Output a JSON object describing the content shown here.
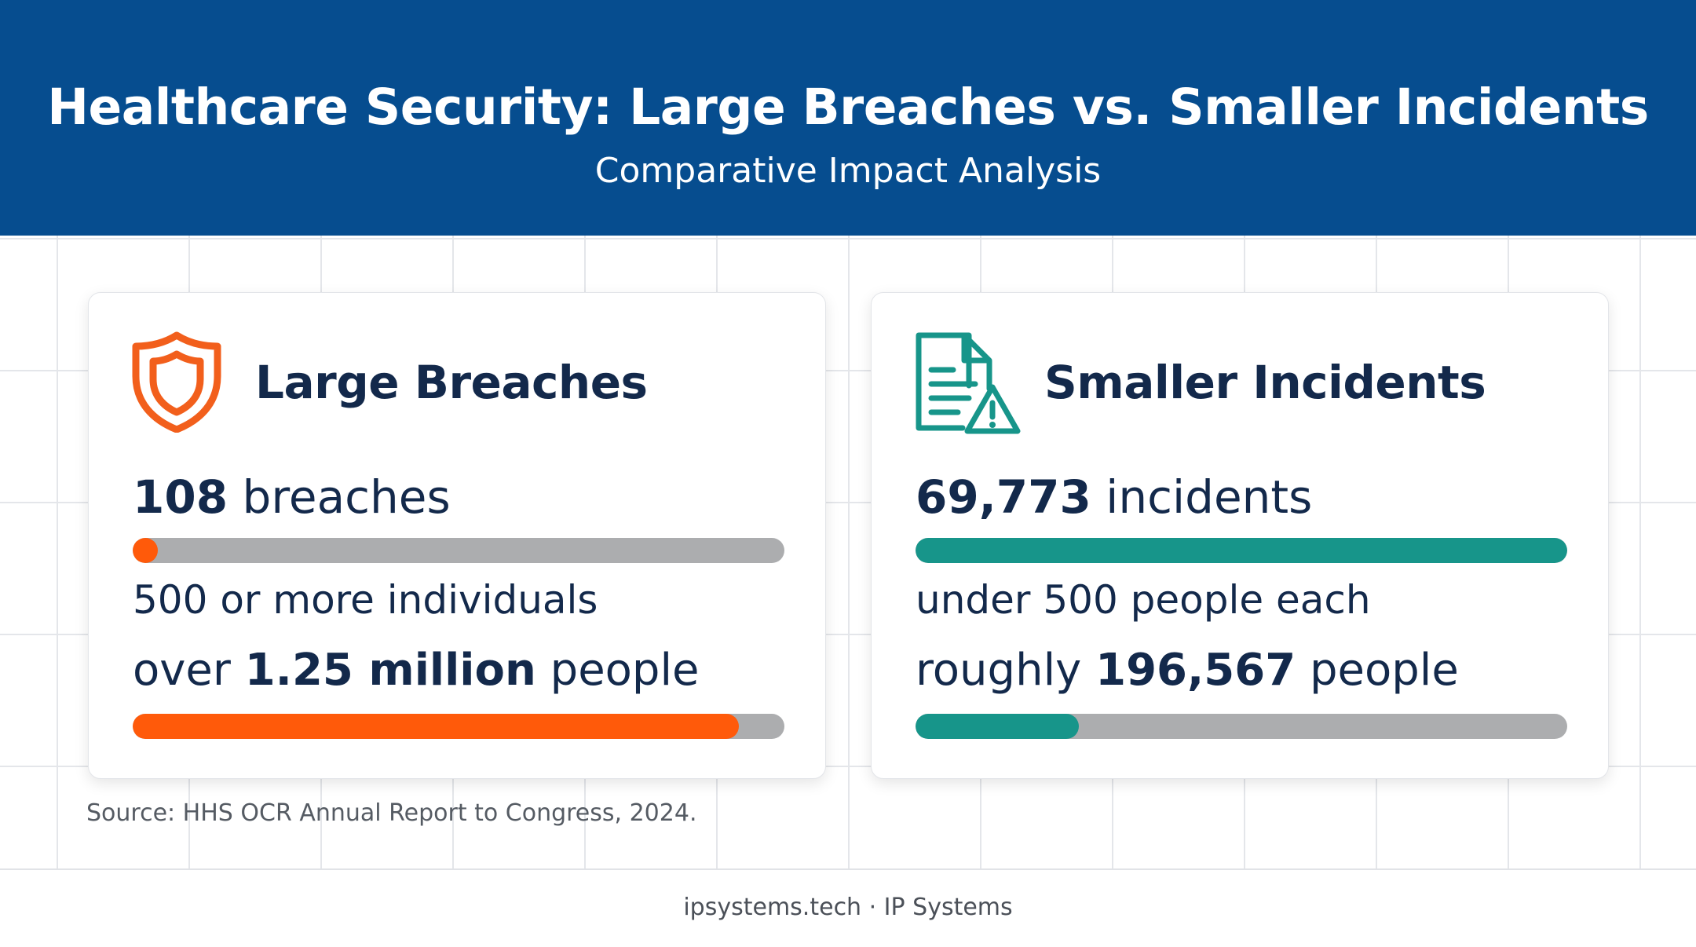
{
  "header": {
    "title": "Healthcare Security: Large Breaches vs. Smaller Incidents",
    "subtitle": "Comparative Impact Analysis"
  },
  "cards": [
    {
      "icon": "shield-icon",
      "title": "Large Breaches",
      "count_value": "108",
      "count_unit": "breaches",
      "count_fill": 0.038,
      "description": "500 or more individuals",
      "people_prefix": "over",
      "people_value": "1.25 million",
      "people_suffix": "people",
      "people_fill": 0.93,
      "accent_color": "#ff5a0a"
    },
    {
      "icon": "document-warning-icon",
      "title": "Smaller Incidents",
      "count_value": "69,773",
      "count_unit": "incidents",
      "count_fill": 1.0,
      "description": "under 500 people each",
      "people_prefix": "roughly",
      "people_value": "196,567",
      "people_suffix": "people",
      "people_fill": 0.25,
      "accent_color": "#17958a"
    }
  ],
  "source": "Source: HHS OCR Annual Report to Congress, 2024.",
  "footer": "ipsystems.tech · IP Systems",
  "colors": {
    "header_bg": "#064d8f",
    "track": "#acadaf",
    "text_dark": "#13294b"
  }
}
